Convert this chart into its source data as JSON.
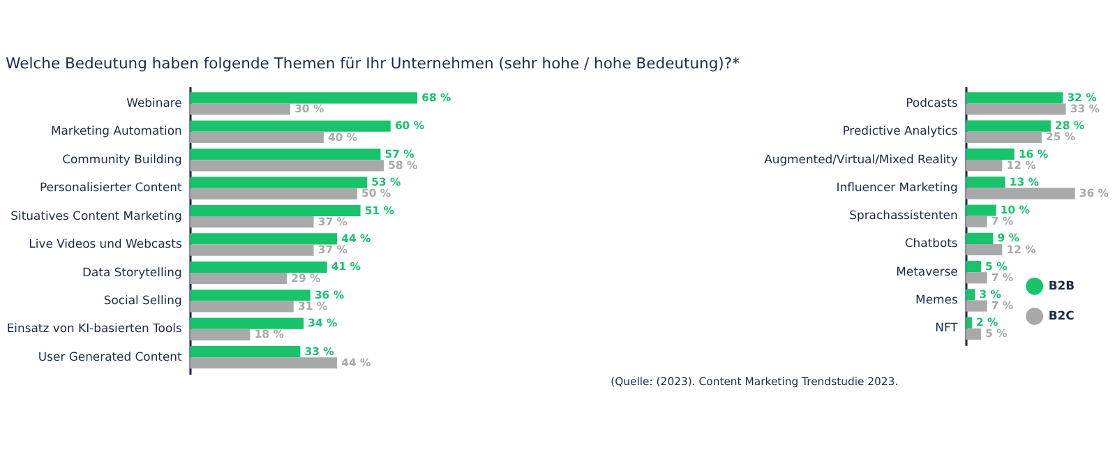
{
  "chart_data": [
    {
      "type": "bar",
      "orientation": "horizontal",
      "title": "Welche Bedeutung haben folgende Themen für Ihr Unternehmen (sehr hohe / hohe Bedeutung)?*",
      "legend": "bottom right",
      "grid": false,
      "categories": [
        "Webinare",
        "Marketing Automation",
        "Community Building",
        "Personalisierter Content",
        "Situatives Content Marketing",
        "Live Videos und Webcasts",
        "Data Storytelling",
        "Social Selling",
        "Einsatz von KI-basierten Tools",
        "User Generated Content"
      ],
      "series": [
        {
          "name": "B2B",
          "color": "#19c36b",
          "values": [
            68,
            60,
            57,
            53,
            51,
            44,
            41,
            36,
            34,
            33
          ],
          "value_labels": [
            "68 %",
            "60 %",
            "57 %",
            "53 %",
            "51 %",
            "44 %",
            "41 %",
            "36 %",
            "34 %",
            "33 %"
          ]
        },
        {
          "name": "B2C",
          "color": "#a8a9ab",
          "values": [
            30,
            40,
            58,
            50,
            37,
            37,
            29,
            31,
            18,
            44
          ],
          "value_labels": [
            "30 %",
            "40 %",
            "58 %",
            "50 %",
            "37 %",
            "37 %",
            "29 %",
            "31 %",
            "18 %",
            "44 %"
          ]
        }
      ]
    },
    {
      "type": "bar",
      "orientation": "horizontal",
      "grid": false,
      "annotations": [
        "(Quelle: (2023). Content Marketing Trendstudie 2023."
      ],
      "categories": [
        "Podcasts",
        "Predictive Analytics",
        "Augmented/Virtual/Mixed Reality",
        "Influencer Marketing",
        "Sprachassistenten",
        "Chatbots",
        "Metaverse",
        "Memes",
        "NFT"
      ],
      "series": [
        {
          "name": "B2B",
          "color": "#19c36b",
          "values": [
            32,
            28,
            16,
            13,
            10,
            9,
            5,
            3,
            2
          ],
          "value_labels": [
            "32 %",
            "28 %",
            "16 %",
            "13 %",
            "10 %",
            "9 %",
            "5 %",
            "3 %",
            "2 %"
          ]
        },
        {
          "name": "B2C",
          "color": "#a8a9ab",
          "values": [
            33,
            25,
            12,
            36,
            7,
            12,
            7,
            7,
            5
          ],
          "value_labels": [
            "33 %",
            "25 %",
            "12 %",
            "36 %",
            "7 %",
            "12 %",
            "7 %",
            "7 %",
            "5 %"
          ]
        }
      ]
    }
  ]
}
